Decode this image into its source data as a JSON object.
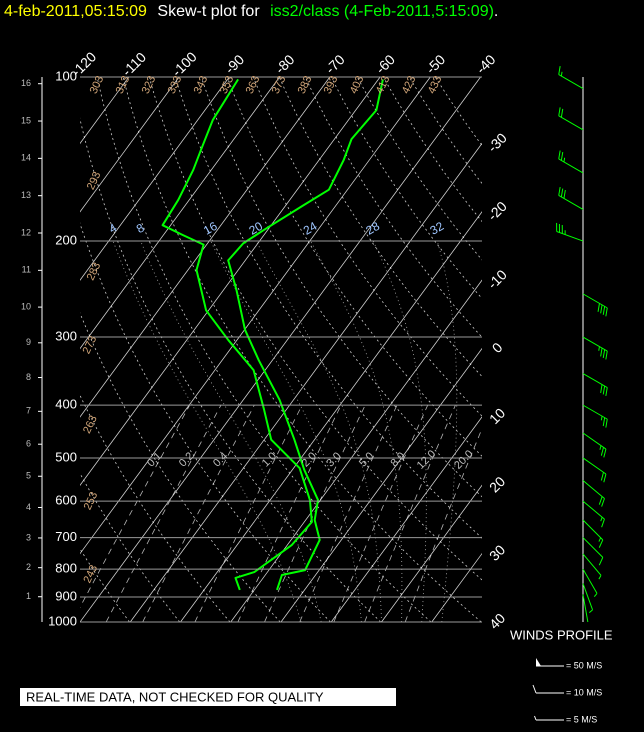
{
  "header": {
    "time": "4-feb-2011,05:15:09",
    "title": "Skew-t plot for",
    "source": "iss2/class (4-Feb-2011,5:15:09)",
    "end": "."
  },
  "chart_data": {
    "type": "skew-t",
    "ylim": [
      1000,
      100
    ],
    "log_y": true,
    "yticks": [
      100,
      200,
      300,
      400,
      500,
      600,
      700,
      800,
      900,
      1000
    ],
    "xlim": [
      -40,
      40
    ],
    "isotherms": [
      -120,
      -110,
      -100,
      -90,
      -80,
      -70,
      -60,
      -50,
      -40,
      -30,
      -20,
      -10,
      0,
      10,
      20,
      30,
      40
    ],
    "dry_adiabats": [
      243,
      253,
      263,
      273,
      283,
      293,
      303,
      313,
      323,
      333,
      343,
      353,
      363,
      373,
      383,
      393,
      403,
      413,
      423,
      433
    ],
    "mixing_ratios": [
      0.1,
      0.2,
      0.4,
      {
        "value": 1,
        "label": "1.0"
      },
      {
        "value": 2,
        "label": "2.0"
      },
      {
        "value": 3,
        "label": "3.0"
      },
      {
        "value": 5,
        "label": "5.0"
      },
      {
        "value": 8,
        "label": "8.0"
      },
      {
        "value": 12,
        "label": "12.0"
      },
      {
        "value": 20,
        "label": "20.0"
      }
    ],
    "moist_adiabats": [
      4,
      8,
      16,
      20,
      24,
      28,
      32
    ],
    "height_ticks": [
      1,
      2,
      3,
      4,
      5,
      6,
      7,
      8,
      9,
      10,
      11,
      12,
      13,
      14,
      15,
      16
    ],
    "series": [
      {
        "color": "#00ff00",
        "pressure": [
          873,
          820,
          803,
          707,
          650,
          597,
          526,
          463,
          391,
          331,
          291,
          246,
          217,
          202,
          191,
          172,
          161,
          142,
          130,
          115,
          101
        ],
        "values": [
          -5.5,
          -6.7,
          -2.8,
          -4.3,
          -8.2,
          -10.5,
          -17.6,
          -24.0,
          -32.8,
          -42.7,
          -49.9,
          -57.4,
          -63.4,
          -62.9,
          -60.8,
          -56.5,
          -53.7,
          -55.1,
          -56.6,
          -55.9,
          -59.1
        ]
      },
      {
        "color": "#00ff00",
        "pressure": [
          873,
          830,
          810,
          722,
          655,
          597,
          522,
          463,
          408,
          345,
          304,
          268,
          226,
          203,
          195,
          187,
          168,
          148,
          136,
          120,
          101
        ],
        "values": [
          -12.9,
          -15.5,
          -12.6,
          -9.1,
          -8.5,
          -12.1,
          -18.8,
          -28.6,
          -34.4,
          -42.3,
          -51.7,
          -60.5,
          -68.3,
          -70.6,
          -76.1,
          -81.6,
          -82.2,
          -83.6,
          -85.0,
          -87.0,
          -87.9
        ]
      }
    ],
    "winds": {
      "title": "WINDS PROFILE",
      "color": "#00ff00",
      "pressure": [
        105,
        125,
        150,
        175,
        200,
        250,
        300,
        350,
        400,
        450,
        500,
        550,
        600,
        650,
        700,
        750,
        800,
        850,
        890
      ],
      "speed": [
        15,
        20,
        25,
        30,
        35,
        40,
        35,
        30,
        28,
        25,
        22,
        20,
        18,
        15,
        12,
        8,
        5,
        5,
        3
      ],
      "direction": [
        300,
        300,
        300,
        300,
        290,
        120,
        120,
        120,
        120,
        125,
        125,
        130,
        130,
        135,
        135,
        140,
        150,
        160,
        170
      ],
      "legend": [
        {
          "value": 50,
          "label": "= 50 M/S"
        },
        {
          "value": 10,
          "label": "= 10 M/S"
        },
        {
          "value": 5,
          "label": "= 5 M/S"
        }
      ]
    }
  },
  "footer": "REAL-TIME DATA, NOT CHECKED FOR QUALITY"
}
